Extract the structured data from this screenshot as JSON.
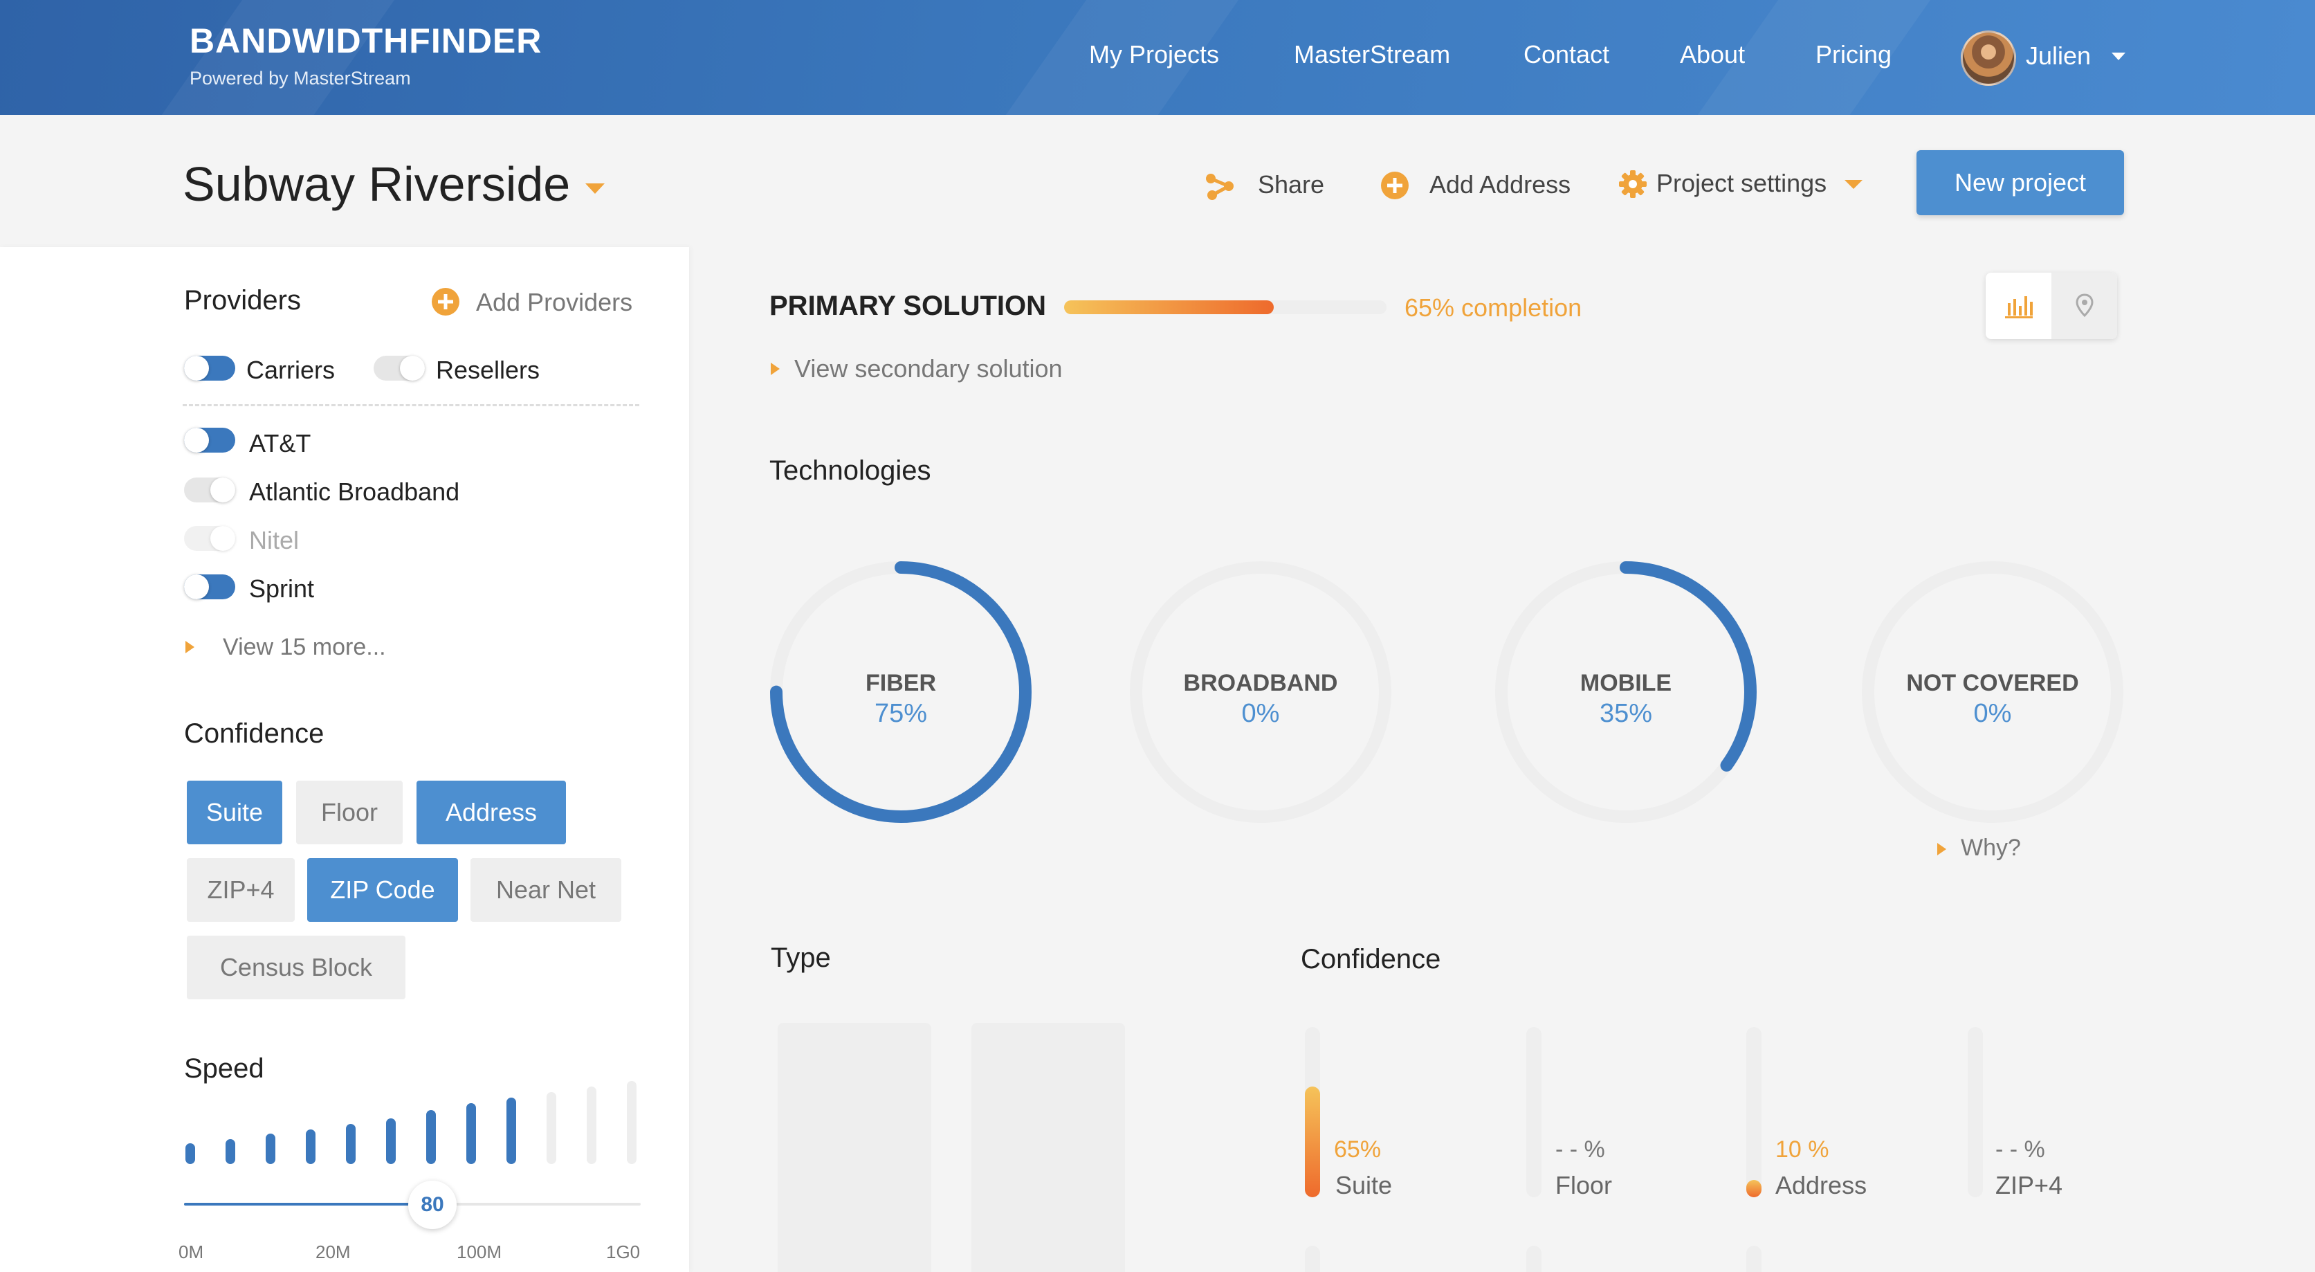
{
  "header": {
    "brand": "BANDWIDTHFINDER",
    "brand_sub": "Powered by MasterStream",
    "nav": [
      "My Projects",
      "MasterStream",
      "Contact",
      "About",
      "Pricing"
    ],
    "user": "Julien"
  },
  "project": {
    "name": "Subway Riverside",
    "toolbar": {
      "share": "Share",
      "add_address": "Add Address",
      "settings": "Project settings",
      "new_project": "New project"
    }
  },
  "sidebar": {
    "providers_title": "Providers",
    "add_providers": "Add Providers",
    "filters": [
      {
        "label": "Carriers",
        "state": "on"
      },
      {
        "label": "Resellers",
        "state": "off"
      }
    ],
    "providers": [
      {
        "label": "AT&T",
        "state": "on"
      },
      {
        "label": "Atlantic Broadband",
        "state": "off"
      },
      {
        "label": "Nitel",
        "state": "disabled"
      },
      {
        "label": "Sprint",
        "state": "on"
      }
    ],
    "view_more": "View 15 more...",
    "confidence_title": "Confidence",
    "confidence_chips": [
      {
        "label": "Suite",
        "active": true
      },
      {
        "label": "Floor",
        "active": false
      },
      {
        "label": "Address",
        "active": true
      },
      {
        "label": "ZIP+4",
        "active": false
      },
      {
        "label": "ZIP Code",
        "active": true
      },
      {
        "label": "Near Net",
        "active": false
      },
      {
        "label": "Census Block",
        "active": false
      }
    ],
    "speed_title": "Speed",
    "speed_value": "80",
    "speed_ticks": [
      "0M",
      "20M",
      "100M",
      "1G0"
    ]
  },
  "main": {
    "primary_title": "PRIMARY SOLUTION",
    "completion_pct": 65,
    "completion_text": "65% completion",
    "view_secondary": "View secondary solution",
    "technologies_title": "Technologies",
    "technologies": [
      {
        "name": "FIBER",
        "pct_text": "75%",
        "value": 75
      },
      {
        "name": "BROADBAND",
        "pct_text": "0%",
        "value": 0
      },
      {
        "name": "MOBILE",
        "pct_text": "35%",
        "value": 35
      },
      {
        "name": "NOT COVERED",
        "pct_text": "0%",
        "value": 0
      }
    ],
    "why": "Why?",
    "type_title": "Type",
    "confidence_title": "Confidence",
    "confidence_bars": [
      {
        "name": "Suite",
        "pct_text": "65%",
        "value": 65
      },
      {
        "name": "Floor",
        "pct_text": "- - %",
        "value": 0
      },
      {
        "name": "Address",
        "pct_text": "10 %",
        "value": 10
      },
      {
        "name": "ZIP+4",
        "pct_text": "- - %",
        "value": 0
      }
    ]
  },
  "colors": {
    "accent": "#3b78bd",
    "button": "#4d8fd0",
    "orange": "#f0a33a"
  }
}
